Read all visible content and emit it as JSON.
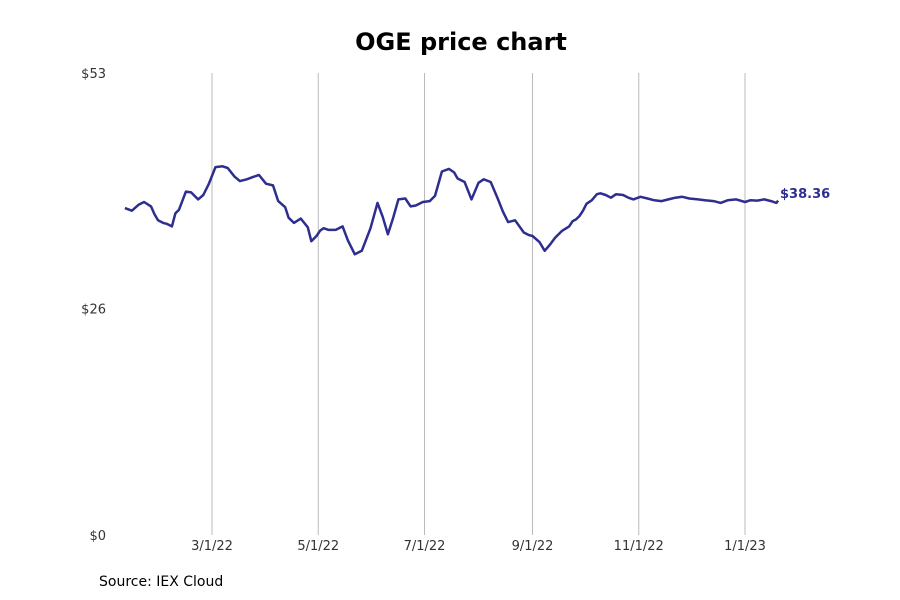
{
  "chart_data": {
    "type": "line",
    "title": "OGE price chart",
    "source": "Source: IEX Cloud",
    "y_ticks": [
      "$0",
      "$26",
      "$53"
    ],
    "y_tick_values": [
      0,
      26,
      53
    ],
    "ylim": [
      0,
      53
    ],
    "x_ticks": [
      "3/1/22",
      "5/1/22",
      "7/1/22",
      "9/1/22",
      "11/1/22",
      "1/1/23"
    ],
    "x_tick_dates": [
      "2022-03-01",
      "2022-05-01",
      "2022-07-01",
      "2022-09-01",
      "2022-11-01",
      "2023-01-01"
    ],
    "xlim": [
      "2022-01-10",
      "2023-03-31"
    ],
    "grid": "vertical",
    "line_color": "#2e2e8f",
    "last_value_label": "$38.36",
    "series": [
      {
        "x": [
          "2022-01-10",
          "2022-01-14",
          "2022-01-18",
          "2022-01-21",
          "2022-01-25",
          "2022-01-27",
          "2022-01-29",
          "2022-02-01",
          "2022-02-03",
          "2022-02-06",
          "2022-02-08",
          "2022-02-10",
          "2022-02-14",
          "2022-02-17",
          "2022-02-19",
          "2022-02-21",
          "2022-02-24",
          "2022-02-27",
          "2022-03-01",
          "2022-03-03",
          "2022-03-07",
          "2022-03-10",
          "2022-03-14",
          "2022-03-17",
          "2022-03-21",
          "2022-03-25",
          "2022-03-28",
          "2022-04-01",
          "2022-04-05",
          "2022-04-08",
          "2022-04-12",
          "2022-04-14",
          "2022-04-17",
          "2022-04-21",
          "2022-04-25",
          "2022-04-27",
          "2022-04-30",
          "2022-05-02",
          "2022-05-04",
          "2022-05-07",
          "2022-05-11",
          "2022-05-15",
          "2022-05-18",
          "2022-05-22",
          "2022-05-26",
          "2022-05-31",
          "2022-06-04",
          "2022-06-07",
          "2022-06-10",
          "2022-06-13",
          "2022-06-16",
          "2022-06-20",
          "2022-06-23",
          "2022-06-26",
          "2022-06-30",
          "2022-07-04",
          "2022-07-07",
          "2022-07-11",
          "2022-07-15",
          "2022-07-18",
          "2022-07-20",
          "2022-07-24",
          "2022-07-28",
          "2022-08-01",
          "2022-08-04",
          "2022-08-08",
          "2022-08-12",
          "2022-08-15",
          "2022-08-18",
          "2022-08-22",
          "2022-08-27",
          "2022-08-30",
          "2022-09-01",
          "2022-09-05",
          "2022-09-08",
          "2022-09-11",
          "2022-09-14",
          "2022-09-18",
          "2022-09-22",
          "2022-09-24",
          "2022-09-26",
          "2022-09-28",
          "2022-09-30",
          "2022-10-02",
          "2022-10-05",
          "2022-10-08",
          "2022-10-10",
          "2022-10-13",
          "2022-10-16",
          "2022-10-19",
          "2022-10-23",
          "2022-10-26",
          "2022-10-29",
          "2022-11-02",
          "2022-11-06",
          "2022-11-10",
          "2022-11-14",
          "2022-11-18",
          "2022-11-22",
          "2022-11-26",
          "2022-11-30",
          "2022-12-05",
          "2022-12-09",
          "2022-12-14",
          "2022-12-18",
          "2022-12-22",
          "2022-12-27",
          "2023-01-01",
          "2023-01-04",
          "2023-01-08",
          "2023-01-12",
          "2023-01-16",
          "2023-01-19",
          "2023-01-20"
        ],
        "y": [
          37.5,
          37.2,
          37.9,
          38.2,
          37.7,
          36.8,
          36.1,
          35.8,
          35.7,
          35.4,
          36.9,
          37.3,
          39.4,
          39.3,
          38.9,
          38.5,
          39.0,
          40.2,
          41.2,
          42.2,
          42.3,
          42.1,
          41.1,
          40.6,
          40.8,
          41.1,
          41.3,
          40.3,
          40.1,
          38.3,
          37.6,
          36.4,
          35.8,
          36.3,
          35.3,
          33.7,
          34.3,
          34.9,
          35.2,
          35.0,
          35.0,
          35.4,
          33.8,
          32.2,
          32.6,
          35.2,
          38.1,
          36.5,
          34.5,
          36.4,
          38.5,
          38.6,
          37.7,
          37.8,
          38.2,
          38.3,
          38.9,
          41.7,
          42.0,
          41.6,
          40.9,
          40.5,
          38.5,
          40.4,
          40.8,
          40.5,
          38.6,
          37.1,
          35.9,
          36.1,
          34.7,
          34.4,
          34.3,
          33.6,
          32.6,
          33.3,
          34.1,
          34.9,
          35.4,
          36.0,
          36.2,
          36.6,
          37.2,
          38.0,
          38.4,
          39.1,
          39.2,
          39.0,
          38.7,
          39.1,
          39.0,
          38.7,
          38.5,
          38.8,
          38.6,
          38.4,
          38.3,
          38.5,
          38.7,
          38.8,
          38.6,
          38.5,
          38.4,
          38.3,
          38.1,
          38.4,
          38.5,
          38.2,
          38.4,
          38.36,
          38.5,
          38.3,
          38.1,
          38.36
        ],
        "values_note": ""
      }
    ]
  }
}
